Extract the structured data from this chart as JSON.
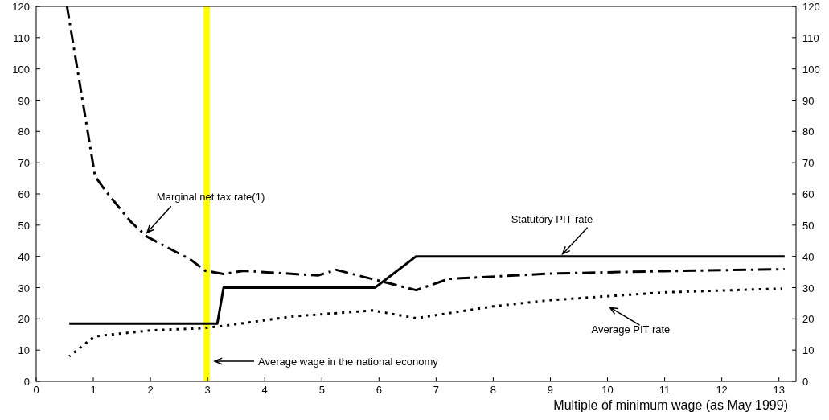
{
  "chart_data": {
    "type": "line",
    "xlabel": "Multiple of minimum wage (as May 1999)",
    "xlim": [
      0,
      13.3
    ],
    "xticks": [
      0,
      1,
      2,
      3,
      4,
      5,
      6,
      7,
      8,
      9,
      10,
      11,
      12,
      13
    ],
    "ylim": [
      0,
      120
    ],
    "yticks": [
      0,
      10,
      20,
      30,
      40,
      50,
      60,
      70,
      80,
      90,
      100,
      110,
      120
    ],
    "y2lim": [
      0,
      120
    ],
    "y2ticks": [
      0,
      10,
      20,
      30,
      40,
      50,
      60,
      70,
      80,
      90,
      100,
      110,
      120
    ],
    "grid": false,
    "series": [
      {
        "color": "#000000",
        "line_style": "dashed",
        "x": [
          0.54,
          1.03,
          1.2,
          1.66,
          1.94,
          2.7,
          2.96,
          3.28,
          3.63,
          4.93,
          5.25,
          6.65,
          7.22,
          9,
          11,
          13.1
        ],
        "values": [
          120,
          65.7,
          61.3,
          51,
          46.3,
          39,
          35.4,
          34.4,
          35.4,
          33.9,
          35.7,
          29.2,
          32.8,
          34.5,
          35.3,
          35.9
        ]
      },
      {
        "color": "#000000",
        "line_style": "solid",
        "x": [
          0.58,
          3.17,
          3.28,
          5.93,
          6.65,
          13.1
        ],
        "values": [
          18.5,
          18.5,
          30,
          30,
          40,
          40
        ]
      },
      {
        "color": "#000000",
        "line_style": "dotted",
        "x": [
          0.58,
          1.02,
          2,
          2.9,
          3.3,
          4.5,
          5.89,
          6.65,
          8,
          9,
          11,
          13.05
        ],
        "values": [
          8,
          14.4,
          16.3,
          17,
          17.8,
          20.8,
          22.7,
          20.2,
          24,
          26,
          28.5,
          29.7
        ]
      }
    ],
    "bands": [
      {
        "axis": "x",
        "from": 2.93,
        "to": 3.04,
        "color": "#ffff00",
        "label": "Average wage in the national economy"
      }
    ],
    "annotations": [
      {
        "text": "Marginal net tax rate(1)",
        "x": 1.94,
        "y": 46.3
      },
      {
        "text": "Statutory PIT rate",
        "x": 9.2,
        "y": 40
      },
      {
        "text": "Average PIT rate",
        "x": 10,
        "y": 27.25
      }
    ]
  }
}
